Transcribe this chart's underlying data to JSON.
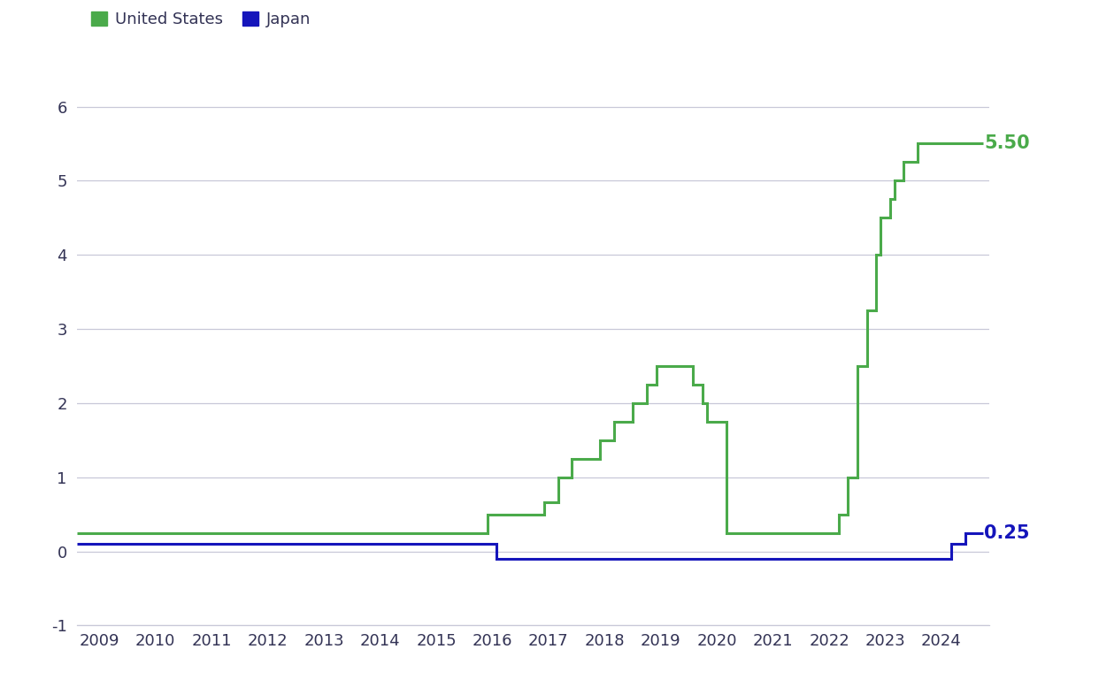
{
  "title": "",
  "us_label": "United States",
  "japan_label": "Japan",
  "us_color": "#4aaa4a",
  "japan_color": "#1515bb",
  "us_annotation": "5.50",
  "japan_annotation": "0.25",
  "annotation_color_us": "#4aaa4a",
  "annotation_color_japan": "#1515bb",
  "background_color": "#ffffff",
  "grid_color": "#c8c8d8",
  "ylim": [
    -1.0,
    6.5
  ],
  "yticks": [
    -1,
    0,
    1,
    2,
    3,
    4,
    5,
    6
  ],
  "xlim_start": 2008.6,
  "xlim_end": 2024.85,
  "xtick_labels": [
    "2009",
    "2010",
    "2011",
    "2012",
    "2013",
    "2014",
    "2015",
    "2016",
    "2017",
    "2018",
    "2019",
    "2020",
    "2021",
    "2022",
    "2023",
    "2024"
  ],
  "xtick_positions": [
    2009,
    2010,
    2011,
    2012,
    2013,
    2014,
    2015,
    2016,
    2017,
    2018,
    2019,
    2020,
    2021,
    2022,
    2023,
    2024
  ],
  "us_steps": [
    [
      2008.6,
      0.25
    ],
    [
      2015.92,
      0.25
    ],
    [
      2015.92,
      0.5
    ],
    [
      2016.92,
      0.5
    ],
    [
      2016.92,
      0.66
    ],
    [
      2017.17,
      0.66
    ],
    [
      2017.17,
      1.0
    ],
    [
      2017.42,
      1.0
    ],
    [
      2017.42,
      1.25
    ],
    [
      2017.92,
      1.25
    ],
    [
      2017.92,
      1.5
    ],
    [
      2018.17,
      1.5
    ],
    [
      2018.17,
      1.75
    ],
    [
      2018.5,
      1.75
    ],
    [
      2018.5,
      2.0
    ],
    [
      2018.75,
      2.0
    ],
    [
      2018.75,
      2.25
    ],
    [
      2018.92,
      2.25
    ],
    [
      2018.92,
      2.5
    ],
    [
      2019.58,
      2.5
    ],
    [
      2019.58,
      2.25
    ],
    [
      2019.75,
      2.25
    ],
    [
      2019.75,
      2.0
    ],
    [
      2019.83,
      2.0
    ],
    [
      2019.83,
      1.75
    ],
    [
      2020.17,
      1.75
    ],
    [
      2020.17,
      0.25
    ],
    [
      2022.17,
      0.25
    ],
    [
      2022.17,
      0.5
    ],
    [
      2022.33,
      0.5
    ],
    [
      2022.33,
      1.0
    ],
    [
      2022.5,
      1.0
    ],
    [
      2022.5,
      2.5
    ],
    [
      2022.67,
      2.5
    ],
    [
      2022.67,
      3.25
    ],
    [
      2022.83,
      3.25
    ],
    [
      2022.83,
      4.0
    ],
    [
      2022.92,
      4.0
    ],
    [
      2022.92,
      4.5
    ],
    [
      2023.08,
      4.5
    ],
    [
      2023.08,
      4.75
    ],
    [
      2023.17,
      4.75
    ],
    [
      2023.17,
      5.0
    ],
    [
      2023.33,
      5.0
    ],
    [
      2023.33,
      5.25
    ],
    [
      2023.58,
      5.25
    ],
    [
      2023.58,
      5.5
    ],
    [
      2024.75,
      5.5
    ]
  ],
  "japan_steps": [
    [
      2008.6,
      0.1
    ],
    [
      2016.08,
      0.1
    ],
    [
      2016.08,
      -0.1
    ],
    [
      2024.17,
      -0.1
    ],
    [
      2024.17,
      0.1
    ],
    [
      2024.42,
      0.1
    ],
    [
      2024.42,
      0.25
    ],
    [
      2024.75,
      0.25
    ]
  ],
  "legend_square_size": 11,
  "fontsize_ticks": 13,
  "fontsize_annotation": 15,
  "fontsize_legend": 13,
  "linewidth": 2.2
}
